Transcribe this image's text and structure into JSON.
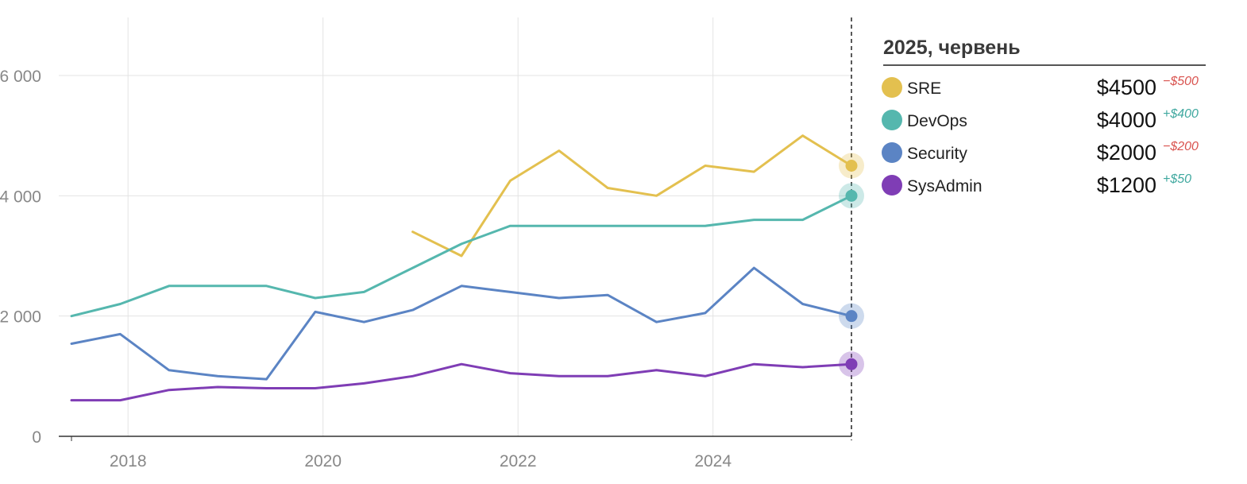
{
  "chart_data": {
    "type": "line",
    "x": [
      2017.42,
      2017.92,
      2018.42,
      2018.92,
      2019.42,
      2019.92,
      2020.42,
      2020.92,
      2021.42,
      2021.92,
      2022.42,
      2022.92,
      2023.42,
      2023.92,
      2024.42,
      2024.92,
      2025.42
    ],
    "xlim": [
      2017.3,
      2025.45
    ],
    "ylim": [
      0,
      7000
    ],
    "x_ticks": [
      2018,
      2020,
      2022,
      2024
    ],
    "x_tick_labels": [
      "2018",
      "2020",
      "2022",
      "2024"
    ],
    "y_ticks": [
      0,
      2000,
      4000,
      6000
    ],
    "y_tick_labels": [
      "0",
      "2 000",
      "4 000",
      "6 000"
    ],
    "grid": true,
    "cursor_x": 2025.42,
    "legend_title": "2025, червень",
    "series": [
      {
        "name": "SRE",
        "color": "#e3c04f",
        "values": [
          null,
          null,
          null,
          null,
          null,
          null,
          null,
          3400,
          3000,
          4250,
          4750,
          4130,
          4000,
          4500,
          4400,
          5000,
          4500
        ],
        "current": "$4500",
        "delta": "−$500",
        "delta_color": "#d9534f"
      },
      {
        "name": "DevOps",
        "color": "#55b7ae",
        "values": [
          2000,
          2200,
          2500,
          2500,
          2500,
          2300,
          2400,
          2800,
          3200,
          3500,
          3500,
          3500,
          3500,
          3500,
          3600,
          3600,
          4000
        ],
        "current": "$4000",
        "delta": "+$400",
        "delta_color": "#3fa89f"
      },
      {
        "name": "Security",
        "color": "#5b84c4",
        "values": [
          1540,
          1700,
          1100,
          1000,
          950,
          2070,
          1900,
          2100,
          2500,
          2400,
          2300,
          2350,
          1900,
          2050,
          2800,
          2200,
          2000
        ],
        "current": "$2000",
        "delta": "−$200",
        "delta_color": "#d9534f"
      },
      {
        "name": "SysAdmin",
        "color": "#7f3db5",
        "values": [
          600,
          600,
          770,
          820,
          800,
          800,
          880,
          1000,
          1200,
          1050,
          1000,
          1000,
          1100,
          1000,
          1200,
          1150,
          1200
        ],
        "current": "$1200",
        "delta": "+$50",
        "delta_color": "#3fa89f"
      }
    ]
  }
}
